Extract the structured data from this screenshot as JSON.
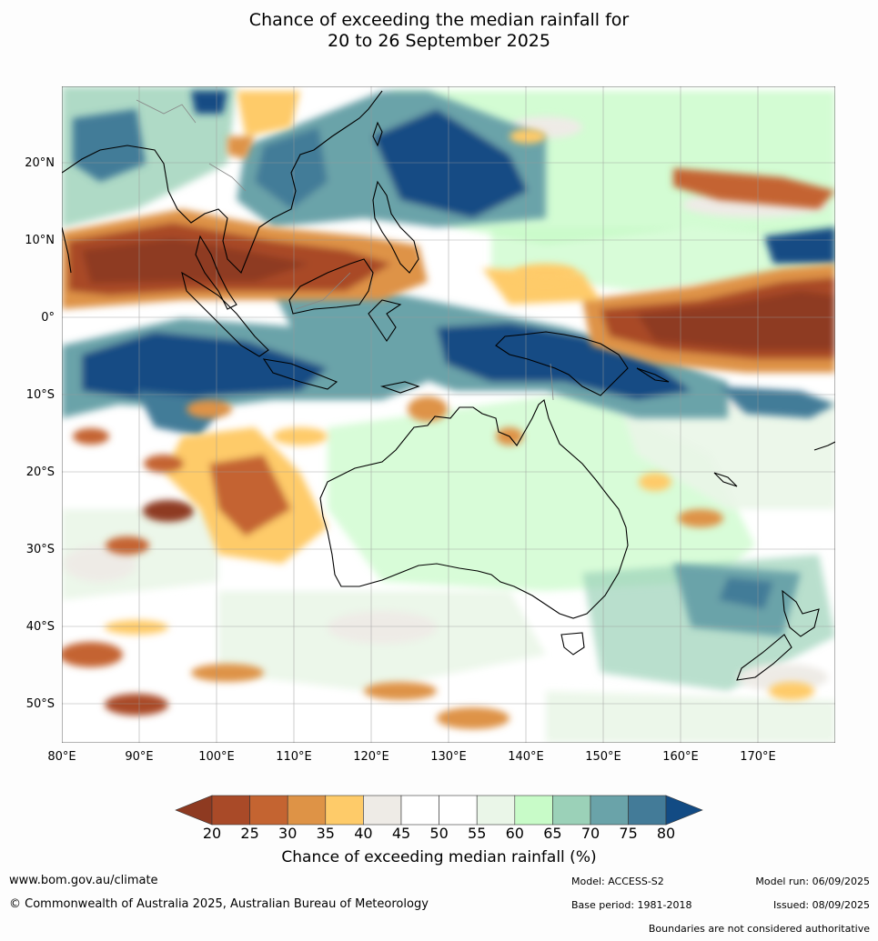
{
  "title": {
    "line1": "Chance of exceeding the median rainfall for",
    "line2": "20 to 26 September 2025"
  },
  "map": {
    "lon_ticks": [
      "80°E",
      "90°E",
      "100°E",
      "110°E",
      "120°E",
      "130°E",
      "140°E",
      "150°E",
      "160°E",
      "170°E"
    ],
    "lat_ticks": [
      "20°N",
      "10°N",
      "0°",
      "10°S",
      "20°S",
      "30°S",
      "40°S",
      "50°S"
    ],
    "colors": {
      "c15_20": "#8e3a21",
      "c20_25": "#a94a28",
      "c25_30": "#c46431",
      "c30_35": "#de9346",
      "c35_40": "#fecb69",
      "c40_45": "#eeebe6",
      "c45_55": "#ffffff",
      "c55_60": "#eaf6e8",
      "c60_65": "#c8fbc8",
      "c65_70": "#9bd1b8",
      "c70_75": "#6aa3a9",
      "c75_80": "#437b98",
      "c80_85": "#124b84"
    }
  },
  "colorbar": {
    "ticks": [
      "20",
      "25",
      "30",
      "35",
      "40",
      "45",
      "50",
      "55",
      "60",
      "65",
      "70",
      "75",
      "80"
    ],
    "label": "Chance of exceeding median rainfall (%)"
  },
  "footer": {
    "website": "www.bom.gov.au/climate",
    "copyright": "© Commonwealth of Australia 2025, Australian Bureau of Meteorology",
    "model": "Model: ACCESS-S2",
    "base_period": "Base period: 1981-2018",
    "model_run": "Model run: 06/09/2025",
    "issued": "Issued: 08/09/2025",
    "disclaimer": "Boundaries are not considered authoritative"
  }
}
